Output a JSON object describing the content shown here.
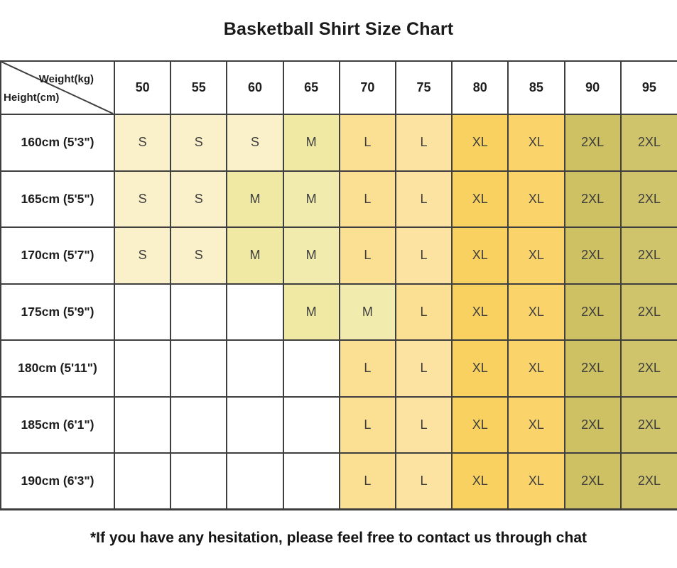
{
  "title": "Basketball Shirt Size Chart",
  "footer": "*If you have any hesitation, please feel free to contact us through chat",
  "colors": {
    "border": "#3f3f3f",
    "s": "#FAF0CA",
    "m": "#EFE9A4",
    "m_light": "#F1EBAE",
    "l": "#FBE093",
    "l_light": "#FCE3A2",
    "xl": "#F9D160",
    "xl_light": "#FAD36A",
    "xxl": "#CDC163",
    "xxl_light": "#CFC46B",
    "empty": "#FFFFFF"
  },
  "table": {
    "corner": {
      "top_label": "Weight(kg)",
      "bottom_label": "Height(cm)"
    },
    "weight_headers": [
      "50",
      "55",
      "60",
      "65",
      "70",
      "75",
      "80",
      "85",
      "90",
      "95"
    ],
    "rows": [
      {
        "height": "160cm (5'3\")",
        "cells": [
          {
            "t": "S",
            "c": "#FAF0CA"
          },
          {
            "t": "S",
            "c": "#FAF0CA"
          },
          {
            "t": "S",
            "c": "#FAF0CA"
          },
          {
            "t": "M",
            "c": "#EFE9A4"
          },
          {
            "t": "L",
            "c": "#FBE093"
          },
          {
            "t": "L",
            "c": "#FCE3A2"
          },
          {
            "t": "XL",
            "c": "#F9D160"
          },
          {
            "t": "XL",
            "c": "#FAD36A"
          },
          {
            "t": "2XL",
            "c": "#CDC163"
          },
          {
            "t": "2XL",
            "c": "#CFC46B"
          }
        ]
      },
      {
        "height": "165cm (5'5\")",
        "cells": [
          {
            "t": "S",
            "c": "#FAF0CA"
          },
          {
            "t": "S",
            "c": "#FAF0CA"
          },
          {
            "t": "M",
            "c": "#EFE9A4"
          },
          {
            "t": "M",
            "c": "#F1EBAE"
          },
          {
            "t": "L",
            "c": "#FBE093"
          },
          {
            "t": "L",
            "c": "#FCE3A2"
          },
          {
            "t": "XL",
            "c": "#F9D160"
          },
          {
            "t": "XL",
            "c": "#FAD36A"
          },
          {
            "t": "2XL",
            "c": "#CDC163"
          },
          {
            "t": "2XL",
            "c": "#CFC46B"
          }
        ]
      },
      {
        "height": "170cm (5'7\")",
        "cells": [
          {
            "t": "S",
            "c": "#FAF0CA"
          },
          {
            "t": "S",
            "c": "#FAF0CA"
          },
          {
            "t": "M",
            "c": "#EFE9A4"
          },
          {
            "t": "M",
            "c": "#F1EBAE"
          },
          {
            "t": "L",
            "c": "#FBE093"
          },
          {
            "t": "L",
            "c": "#FCE3A2"
          },
          {
            "t": "XL",
            "c": "#F9D160"
          },
          {
            "t": "XL",
            "c": "#FAD36A"
          },
          {
            "t": "2XL",
            "c": "#CDC163"
          },
          {
            "t": "2XL",
            "c": "#CFC46B"
          }
        ]
      },
      {
        "height": "175cm (5'9\")",
        "cells": [
          {
            "t": "",
            "c": "#FFFFFF"
          },
          {
            "t": "",
            "c": "#FFFFFF"
          },
          {
            "t": "",
            "c": "#FFFFFF"
          },
          {
            "t": "M",
            "c": "#EFE9A4"
          },
          {
            "t": "M",
            "c": "#F1EBAE"
          },
          {
            "t": "L",
            "c": "#FBE093"
          },
          {
            "t": "XL",
            "c": "#F9D160"
          },
          {
            "t": "XL",
            "c": "#FAD36A"
          },
          {
            "t": "2XL",
            "c": "#CDC163"
          },
          {
            "t": "2XL",
            "c": "#CFC46B"
          }
        ]
      },
      {
        "height": "180cm (5'11\")",
        "cells": [
          {
            "t": "",
            "c": "#FFFFFF"
          },
          {
            "t": "",
            "c": "#FFFFFF"
          },
          {
            "t": "",
            "c": "#FFFFFF"
          },
          {
            "t": "",
            "c": "#FFFFFF"
          },
          {
            "t": "L",
            "c": "#FBE093"
          },
          {
            "t": "L",
            "c": "#FCE3A2"
          },
          {
            "t": "XL",
            "c": "#F9D160"
          },
          {
            "t": "XL",
            "c": "#FAD36A"
          },
          {
            "t": "2XL",
            "c": "#CDC163"
          },
          {
            "t": "2XL",
            "c": "#CFC46B"
          }
        ]
      },
      {
        "height": "185cm (6'1\")",
        "cells": [
          {
            "t": "",
            "c": "#FFFFFF"
          },
          {
            "t": "",
            "c": "#FFFFFF"
          },
          {
            "t": "",
            "c": "#FFFFFF"
          },
          {
            "t": "",
            "c": "#FFFFFF"
          },
          {
            "t": "L",
            "c": "#FBE093"
          },
          {
            "t": "L",
            "c": "#FCE3A2"
          },
          {
            "t": "XL",
            "c": "#F9D160"
          },
          {
            "t": "XL",
            "c": "#FAD36A"
          },
          {
            "t": "2XL",
            "c": "#CDC163"
          },
          {
            "t": "2XL",
            "c": "#CFC46B"
          }
        ]
      },
      {
        "height": "190cm (6'3\")",
        "cells": [
          {
            "t": "",
            "c": "#FFFFFF"
          },
          {
            "t": "",
            "c": "#FFFFFF"
          },
          {
            "t": "",
            "c": "#FFFFFF"
          },
          {
            "t": "",
            "c": "#FFFFFF"
          },
          {
            "t": "L",
            "c": "#FBE093"
          },
          {
            "t": "L",
            "c": "#FCE3A2"
          },
          {
            "t": "XL",
            "c": "#F9D160"
          },
          {
            "t": "XL",
            "c": "#FAD36A"
          },
          {
            "t": "2XL",
            "c": "#CDC163"
          },
          {
            "t": "2XL",
            "c": "#CFC46B"
          }
        ]
      }
    ]
  },
  "chart_data": {
    "type": "table",
    "title": "Basketball Shirt Size Chart",
    "x_header": "Weight(kg)",
    "y_header": "Height(cm)",
    "columns": [
      50,
      55,
      60,
      65,
      70,
      75,
      80,
      85,
      90,
      95
    ],
    "rows": [
      {
        "height": "160cm (5'3\")",
        "sizes": [
          "S",
          "S",
          "S",
          "M",
          "L",
          "L",
          "XL",
          "XL",
          "2XL",
          "2XL"
        ]
      },
      {
        "height": "165cm (5'5\")",
        "sizes": [
          "S",
          "S",
          "M",
          "M",
          "L",
          "L",
          "XL",
          "XL",
          "2XL",
          "2XL"
        ]
      },
      {
        "height": "170cm (5'7\")",
        "sizes": [
          "S",
          "S",
          "M",
          "M",
          "L",
          "L",
          "XL",
          "XL",
          "2XL",
          "2XL"
        ]
      },
      {
        "height": "175cm (5'9\")",
        "sizes": [
          "",
          "",
          "",
          "M",
          "M",
          "L",
          "XL",
          "XL",
          "2XL",
          "2XL"
        ]
      },
      {
        "height": "180cm (5'11\")",
        "sizes": [
          "",
          "",
          "",
          "",
          "L",
          "L",
          "XL",
          "XL",
          "2XL",
          "2XL"
        ]
      },
      {
        "height": "185cm (6'1\")",
        "sizes": [
          "",
          "",
          "",
          "",
          "L",
          "L",
          "XL",
          "XL",
          "2XL",
          "2XL"
        ]
      },
      {
        "height": "190cm (6'3\")",
        "sizes": [
          "",
          "",
          "",
          "",
          "L",
          "L",
          "XL",
          "XL",
          "2XL",
          "2XL"
        ]
      }
    ],
    "note": "*If you have any hesitation, please feel free to contact us through chat"
  }
}
